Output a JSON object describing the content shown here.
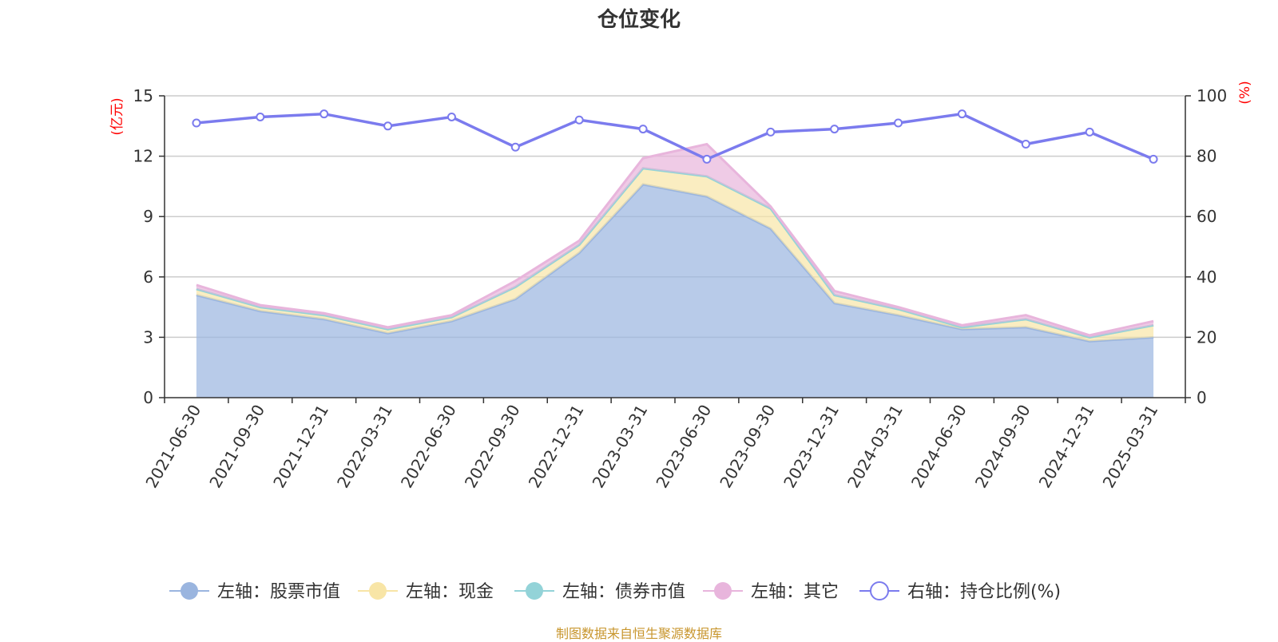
{
  "chart_data": {
    "type": "area",
    "title": "仓位变化",
    "categories": [
      "2021-06-30",
      "2021-09-30",
      "2021-12-31",
      "2022-03-31",
      "2022-06-30",
      "2022-09-30",
      "2022-12-31",
      "2023-03-31",
      "2023-06-30",
      "2023-09-30",
      "2023-12-31",
      "2024-03-31",
      "2024-06-30",
      "2024-09-30",
      "2024-12-31",
      "2025-03-31"
    ],
    "left_axis": {
      "unit": "(亿元)",
      "ylim": [
        0,
        15
      ],
      "ticks": [
        0,
        3,
        6,
        9,
        12,
        15
      ]
    },
    "right_axis": {
      "unit": "(%)",
      "ylim": [
        0,
        100
      ],
      "ticks": [
        0,
        20,
        40,
        60,
        80,
        100
      ]
    },
    "stacked": true,
    "series": [
      {
        "name": "左轴：股票市值",
        "axis": "left",
        "color": "#9ab5df",
        "values": [
          5.1,
          4.3,
          3.9,
          3.2,
          3.8,
          4.9,
          7.2,
          10.6,
          10.0,
          8.4,
          4.7,
          4.1,
          3.4,
          3.5,
          2.8,
          3.0
        ]
      },
      {
        "name": "左轴：现金",
        "axis": "left",
        "color": "#f8e5a6",
        "values": [
          0.3,
          0.2,
          0.2,
          0.2,
          0.2,
          0.6,
          0.4,
          0.8,
          1.0,
          1.0,
          0.4,
          0.3,
          0.1,
          0.4,
          0.2,
          0.6
        ]
      },
      {
        "name": "左轴：债券市值",
        "axis": "left",
        "color": "#93d3d8",
        "values": [
          0,
          0,
          0,
          0,
          0,
          0,
          0,
          0,
          0,
          0,
          0,
          0,
          0,
          0,
          0,
          0
        ]
      },
      {
        "name": "左轴：其它",
        "axis": "left",
        "color": "#e8b5dc",
        "values": [
          0.2,
          0.1,
          0.1,
          0.1,
          0.1,
          0.3,
          0.2,
          0.5,
          1.6,
          0.1,
          0.2,
          0.1,
          0.1,
          0.2,
          0.1,
          0.2
        ]
      },
      {
        "name": "右轴：持仓比例(%)",
        "axis": "right",
        "color": "#7b7bee",
        "type": "line",
        "values": [
          91,
          93,
          94,
          90,
          93,
          83,
          92,
          89,
          79,
          88,
          89,
          91,
          94,
          84,
          88,
          79
        ]
      }
    ],
    "grid": true,
    "legend_position": "bottom"
  },
  "footer": "制图数据来自恒生聚源数据库"
}
